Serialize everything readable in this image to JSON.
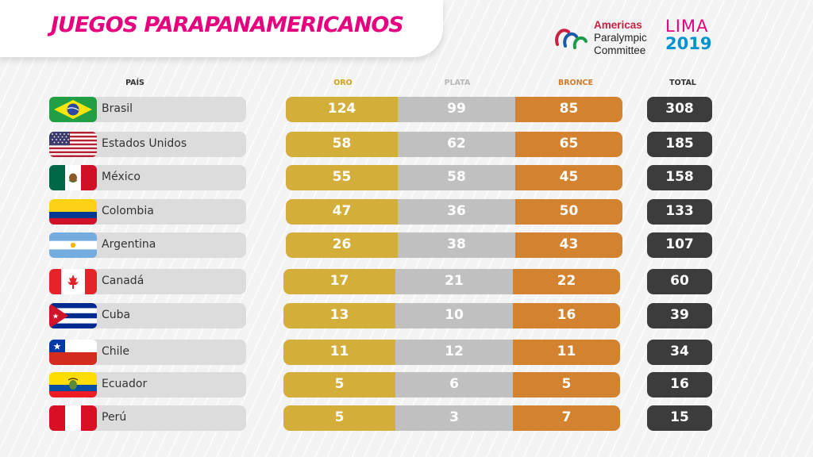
{
  "header": {
    "title": "JUEGOS PARAPANAMERICANOS",
    "apc_logo_lines": [
      "Americas",
      "Paralympic",
      "Committee"
    ],
    "lima_word": "LIMA",
    "lima_year": "2019"
  },
  "columns": {
    "pais": "PAÍS",
    "oro": "ORO",
    "plata": "PLATA",
    "bronce": "BRONCE",
    "total": "TOTAL"
  },
  "colors": {
    "title": "#e6007e",
    "oro": "#d4ae3a",
    "plata": "#c0c0c0",
    "bronce": "#d3832f",
    "total": "#3c3c3c"
  },
  "rows": [
    {
      "flag": "brazil-flag-icon",
      "country": "Brasil",
      "oro": "124",
      "plata": "99",
      "bronce": "85",
      "total": "308"
    },
    {
      "flag": "usa-flag-icon",
      "country": "Estados Unidos",
      "oro": "58",
      "plata": "62",
      "bronce": "65",
      "total": "185"
    },
    {
      "flag": "mexico-flag-icon",
      "country": "México",
      "oro": "55",
      "plata": "58",
      "bronce": "45",
      "total": "158"
    },
    {
      "flag": "colombia-flag-icon",
      "country": "Colombia",
      "oro": "47",
      "plata": "36",
      "bronce": "50",
      "total": "133"
    },
    {
      "flag": "argentina-flag-icon",
      "country": "Argentina",
      "oro": "26",
      "plata": "38",
      "bronce": "43",
      "total": "107"
    },
    {
      "flag": "canada-flag-icon",
      "country": "Canadá",
      "oro": "17",
      "plata": "21",
      "bronce": "22",
      "total": "60"
    },
    {
      "flag": "cuba-flag-icon",
      "country": "Cuba",
      "oro": "13",
      "plata": "10",
      "bronce": "16",
      "total": "39"
    },
    {
      "flag": "chile-flag-icon",
      "country": "Chile",
      "oro": "11",
      "plata": "12",
      "bronce": "11",
      "total": "34"
    },
    {
      "flag": "ecuador-flag-icon",
      "country": "Ecuador",
      "oro": "5",
      "plata": "6",
      "bronce": "5",
      "total": "16"
    },
    {
      "flag": "peru-flag-icon",
      "country": "Perú",
      "oro": "5",
      "plata": "3",
      "bronce": "7",
      "total": "15"
    }
  ]
}
